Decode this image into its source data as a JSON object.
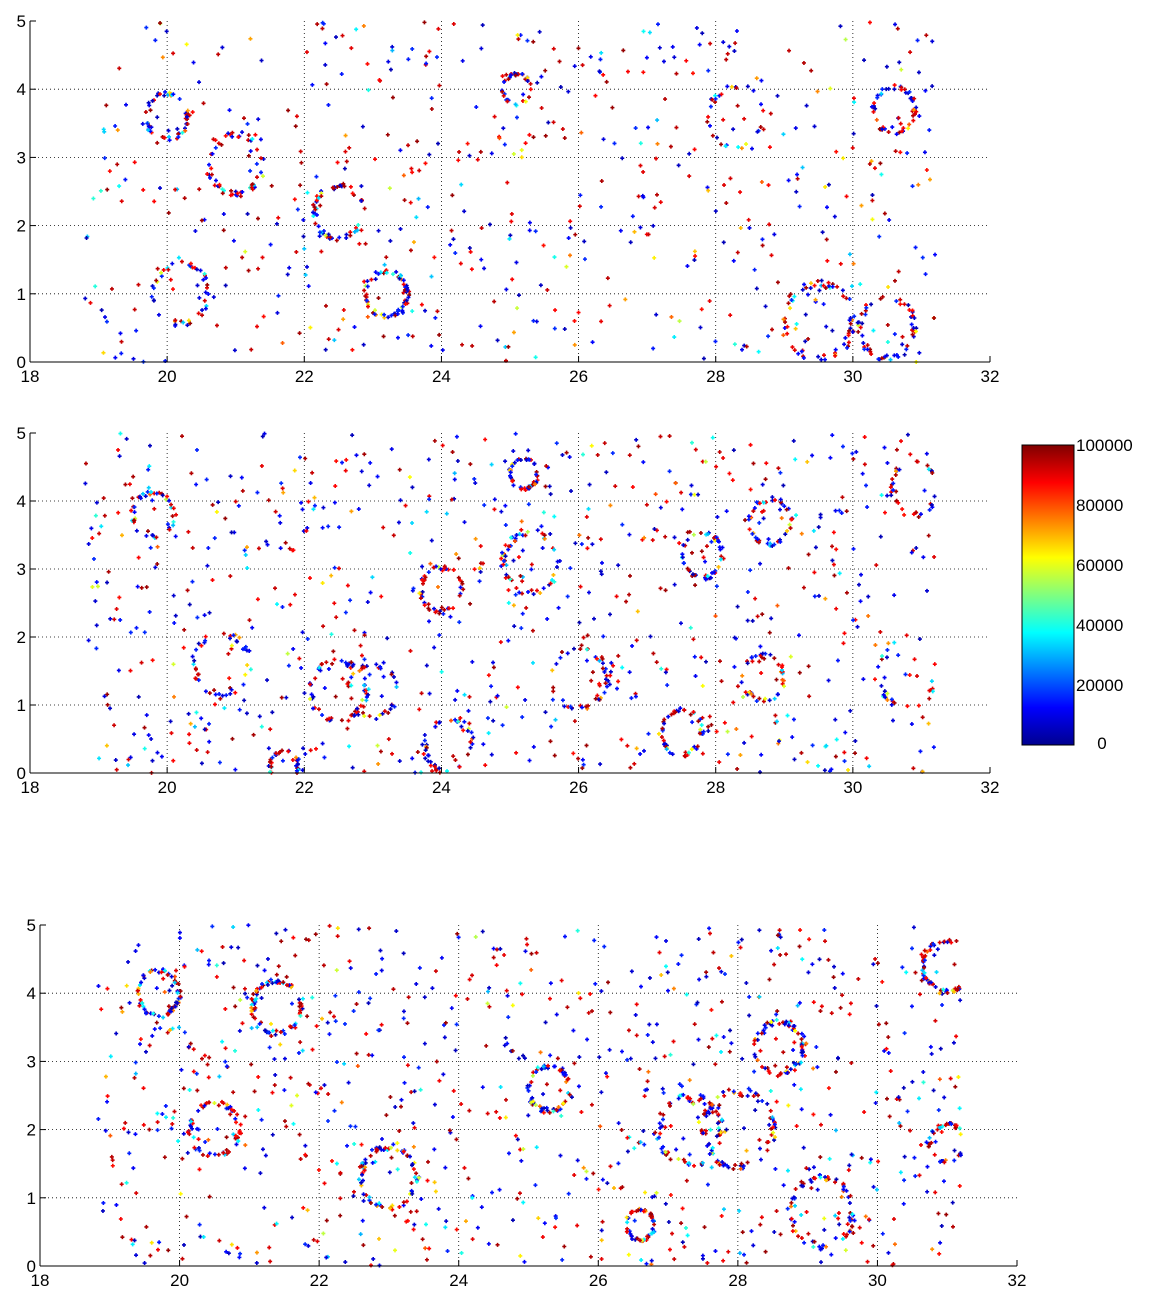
{
  "chart_data": [
    {
      "type": "scatter",
      "title": "",
      "xlabel": "",
      "ylabel": "",
      "xlim": [
        18,
        32
      ],
      "ylim": [
        0,
        5
      ],
      "x_ticks": [
        "18",
        "20",
        "22",
        "24",
        "26",
        "28",
        "30",
        "32"
      ],
      "y_ticks": [
        "0",
        "1",
        "2",
        "3",
        "4",
        "5"
      ],
      "grid": true,
      "grid_style": "dotted",
      "marker": "plus",
      "data_x_range": [
        18.8,
        31.2
      ],
      "point_count_estimate": 1100,
      "clusters": [
        {
          "cx": 22.5,
          "cy": 2.2,
          "r": 0.35
        },
        {
          "cx": 25.1,
          "cy": 4.0,
          "r": 0.2
        },
        {
          "cx": 28.3,
          "cy": 3.6,
          "r": 0.4
        },
        {
          "cx": 30.6,
          "cy": 3.7,
          "r": 0.3
        },
        {
          "cx": 20.2,
          "cy": 1.0,
          "r": 0.4
        },
        {
          "cx": 23.2,
          "cy": 1.0,
          "r": 0.3
        },
        {
          "cx": 29.5,
          "cy": 0.6,
          "r": 0.5
        },
        {
          "cx": 30.5,
          "cy": 0.5,
          "r": 0.4
        },
        {
          "cx": 21.0,
          "cy": 2.9,
          "r": 0.4
        },
        {
          "cx": 20.0,
          "cy": 3.6,
          "r": 0.3
        }
      ],
      "seed": 11
    },
    {
      "type": "scatter",
      "title": "",
      "xlabel": "",
      "ylabel": "",
      "xlim": [
        18,
        32
      ],
      "ylim": [
        0,
        5
      ],
      "x_ticks": [
        "18",
        "20",
        "22",
        "24",
        "26",
        "28",
        "30",
        "32"
      ],
      "y_ticks": [
        "0",
        "1",
        "2",
        "3",
        "4",
        "5"
      ],
      "grid": true,
      "grid_style": "dotted",
      "marker": "plus",
      "data_x_range": [
        18.8,
        31.2
      ],
      "point_count_estimate": 1500,
      "clusters": [
        {
          "cx": 19.8,
          "cy": 3.8,
          "r": 0.3
        },
        {
          "cx": 22.5,
          "cy": 1.2,
          "r": 0.4
        },
        {
          "cx": 23.0,
          "cy": 1.2,
          "r": 0.35
        },
        {
          "cx": 25.2,
          "cy": 4.4,
          "r": 0.2
        },
        {
          "cx": 24.0,
          "cy": 2.7,
          "r": 0.3
        },
        {
          "cx": 25.3,
          "cy": 3.1,
          "r": 0.4
        },
        {
          "cx": 27.8,
          "cy": 3.2,
          "r": 0.3
        },
        {
          "cx": 27.5,
          "cy": 0.6,
          "r": 0.3
        },
        {
          "cx": 30.9,
          "cy": 4.2,
          "r": 0.35
        },
        {
          "cx": 28.8,
          "cy": 3.7,
          "r": 0.3
        },
        {
          "cx": 24.1,
          "cy": 0.4,
          "r": 0.35
        },
        {
          "cx": 21.7,
          "cy": 0.1,
          "r": 0.2
        },
        {
          "cx": 20.8,
          "cy": 1.6,
          "r": 0.4
        },
        {
          "cx": 28.7,
          "cy": 1.4,
          "r": 0.3
        },
        {
          "cx": 26.0,
          "cy": 1.4,
          "r": 0.4
        },
        {
          "cx": 30.8,
          "cy": 1.5,
          "r": 0.45
        }
      ],
      "seed": 23
    },
    {
      "type": "scatter",
      "title": "",
      "xlabel": "",
      "ylabel": "",
      "xlim": [
        18,
        32
      ],
      "ylim": [
        0,
        5
      ],
      "x_ticks": [
        "18",
        "20",
        "22",
        "24",
        "26",
        "28",
        "30",
        "32"
      ],
      "y_ticks": [
        "0",
        "1",
        "2",
        "3",
        "4",
        "5"
      ],
      "grid": true,
      "grid_style": "dotted",
      "marker": "plus",
      "data_x_range": [
        18.8,
        31.2
      ],
      "point_count_estimate": 1700,
      "clusters": [
        {
          "cx": 21.4,
          "cy": 3.8,
          "r": 0.35
        },
        {
          "cx": 19.7,
          "cy": 4.0,
          "r": 0.3
        },
        {
          "cx": 27.3,
          "cy": 2.0,
          "r": 0.45
        },
        {
          "cx": 28.0,
          "cy": 2.0,
          "r": 0.5
        },
        {
          "cx": 25.3,
          "cy": 2.6,
          "r": 0.3
        },
        {
          "cx": 31.0,
          "cy": 4.4,
          "r": 0.35
        },
        {
          "cx": 31.0,
          "cy": 1.8,
          "r": 0.25
        },
        {
          "cx": 26.6,
          "cy": 0.6,
          "r": 0.2
        },
        {
          "cx": 29.2,
          "cy": 0.8,
          "r": 0.45
        },
        {
          "cx": 23.0,
          "cy": 1.3,
          "r": 0.4
        },
        {
          "cx": 20.5,
          "cy": 2.0,
          "r": 0.35
        },
        {
          "cx": 28.6,
          "cy": 3.2,
          "r": 0.35
        }
      ],
      "seed": 37
    }
  ],
  "colorbar": {
    "colormap": "jet",
    "min": 0,
    "max": 100000,
    "tick_labels": [
      "100000",
      "80000",
      "60000",
      "40000",
      "20000",
      "0"
    ],
    "tick_values": [
      100000,
      80000,
      60000,
      40000,
      20000,
      0
    ]
  }
}
